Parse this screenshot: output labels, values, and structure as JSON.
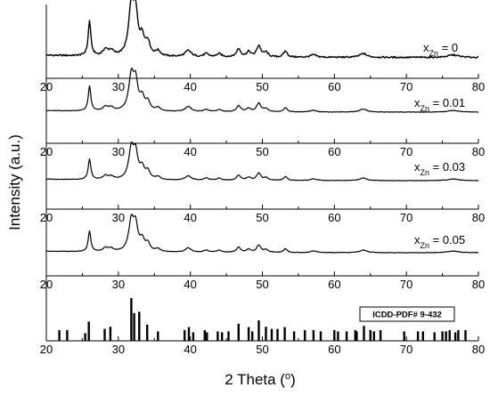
{
  "chart_data": {
    "type": "line",
    "xlabel": "2 Theta (",
    "xlabel_sup": "o",
    "xlabel_close": ")",
    "ylabel": "Intensity (a.u.)",
    "xlim": [
      20,
      80
    ],
    "xticks": [
      "20",
      "30",
      "40",
      "50",
      "60",
      "70",
      "80"
    ],
    "grid": false,
    "panels": [
      {
        "legend_main": "x",
        "legend_sub": "Zn",
        "legend_value": " = 0",
        "peaks": [
          {
            "x": 26.0,
            "h": 0.56,
            "w": 0.22
          },
          {
            "x": 28.2,
            "h": 0.1,
            "w": 0.4
          },
          {
            "x": 29.0,
            "h": 0.08,
            "w": 0.4
          },
          {
            "x": 31.8,
            "h": 0.8,
            "w": 0.42
          },
          {
            "x": 32.4,
            "h": 0.6,
            "w": 0.35
          },
          {
            "x": 33.3,
            "h": 0.28,
            "w": 0.4
          },
          {
            "x": 34.1,
            "h": 0.2,
            "w": 0.35
          },
          {
            "x": 35.5,
            "h": 0.08,
            "w": 0.4
          },
          {
            "x": 39.7,
            "h": 0.1,
            "w": 0.5
          },
          {
            "x": 42.2,
            "h": 0.05,
            "w": 0.4
          },
          {
            "x": 44.0,
            "h": 0.05,
            "w": 0.4
          },
          {
            "x": 46.7,
            "h": 0.13,
            "w": 0.35
          },
          {
            "x": 48.1,
            "h": 0.08,
            "w": 0.35
          },
          {
            "x": 49.5,
            "h": 0.18,
            "w": 0.35
          },
          {
            "x": 50.5,
            "h": 0.07,
            "w": 0.35
          },
          {
            "x": 53.2,
            "h": 0.1,
            "w": 0.3
          },
          {
            "x": 57.1,
            "h": 0.04,
            "w": 0.5
          },
          {
            "x": 64.0,
            "h": 0.06,
            "w": 0.6
          },
          {
            "x": 76.5,
            "h": 0.04,
            "w": 0.9
          }
        ]
      },
      {
        "legend_main": "x",
        "legend_sub": "Zn",
        "legend_value": " = 0.01",
        "peaks": [
          {
            "x": 26.0,
            "h": 0.58,
            "w": 0.22
          },
          {
            "x": 28.2,
            "h": 0.1,
            "w": 0.4
          },
          {
            "x": 29.0,
            "h": 0.08,
            "w": 0.4
          },
          {
            "x": 31.8,
            "h": 0.82,
            "w": 0.42
          },
          {
            "x": 32.4,
            "h": 0.62,
            "w": 0.35
          },
          {
            "x": 33.3,
            "h": 0.3,
            "w": 0.4
          },
          {
            "x": 34.1,
            "h": 0.2,
            "w": 0.35
          },
          {
            "x": 35.5,
            "h": 0.08,
            "w": 0.4
          },
          {
            "x": 39.7,
            "h": 0.12,
            "w": 0.5
          },
          {
            "x": 42.2,
            "h": 0.05,
            "w": 0.4
          },
          {
            "x": 44.0,
            "h": 0.05,
            "w": 0.4
          },
          {
            "x": 46.7,
            "h": 0.14,
            "w": 0.35
          },
          {
            "x": 48.1,
            "h": 0.08,
            "w": 0.35
          },
          {
            "x": 49.5,
            "h": 0.2,
            "w": 0.35
          },
          {
            "x": 50.5,
            "h": 0.07,
            "w": 0.35
          },
          {
            "x": 53.2,
            "h": 0.1,
            "w": 0.3
          },
          {
            "x": 57.1,
            "h": 0.04,
            "w": 0.5
          },
          {
            "x": 64.0,
            "h": 0.07,
            "w": 0.6
          },
          {
            "x": 76.5,
            "h": 0.04,
            "w": 0.9
          }
        ]
      },
      {
        "legend_main": "x",
        "legend_sub": "Zn",
        "legend_value": " = 0.03",
        "peaks": [
          {
            "x": 26.0,
            "h": 0.48,
            "w": 0.22
          },
          {
            "x": 28.2,
            "h": 0.09,
            "w": 0.4
          },
          {
            "x": 29.0,
            "h": 0.07,
            "w": 0.4
          },
          {
            "x": 31.8,
            "h": 0.72,
            "w": 0.42
          },
          {
            "x": 32.4,
            "h": 0.55,
            "w": 0.35
          },
          {
            "x": 33.3,
            "h": 0.26,
            "w": 0.4
          },
          {
            "x": 34.1,
            "h": 0.18,
            "w": 0.35
          },
          {
            "x": 35.5,
            "h": 0.07,
            "w": 0.4
          },
          {
            "x": 39.7,
            "h": 0.1,
            "w": 0.5
          },
          {
            "x": 42.2,
            "h": 0.05,
            "w": 0.4
          },
          {
            "x": 44.0,
            "h": 0.05,
            "w": 0.4
          },
          {
            "x": 46.7,
            "h": 0.12,
            "w": 0.35
          },
          {
            "x": 48.1,
            "h": 0.07,
            "w": 0.35
          },
          {
            "x": 49.5,
            "h": 0.17,
            "w": 0.35
          },
          {
            "x": 50.5,
            "h": 0.06,
            "w": 0.35
          },
          {
            "x": 53.2,
            "h": 0.09,
            "w": 0.3
          },
          {
            "x": 57.1,
            "h": 0.04,
            "w": 0.5
          },
          {
            "x": 64.0,
            "h": 0.06,
            "w": 0.6
          },
          {
            "x": 76.5,
            "h": 0.04,
            "w": 0.9
          }
        ]
      },
      {
        "legend_main": "x",
        "legend_sub": "Zn",
        "legend_value": " = 0.05",
        "peaks": [
          {
            "x": 26.0,
            "h": 0.48,
            "w": 0.22
          },
          {
            "x": 28.2,
            "h": 0.09,
            "w": 0.4
          },
          {
            "x": 29.0,
            "h": 0.07,
            "w": 0.4
          },
          {
            "x": 31.8,
            "h": 0.72,
            "w": 0.42
          },
          {
            "x": 32.4,
            "h": 0.55,
            "w": 0.35
          },
          {
            "x": 33.3,
            "h": 0.26,
            "w": 0.4
          },
          {
            "x": 34.1,
            "h": 0.18,
            "w": 0.35
          },
          {
            "x": 35.5,
            "h": 0.07,
            "w": 0.4
          },
          {
            "x": 39.7,
            "h": 0.1,
            "w": 0.5
          },
          {
            "x": 42.2,
            "h": 0.05,
            "w": 0.4
          },
          {
            "x": 44.0,
            "h": 0.05,
            "w": 0.4
          },
          {
            "x": 46.7,
            "h": 0.12,
            "w": 0.35
          },
          {
            "x": 48.1,
            "h": 0.07,
            "w": 0.35
          },
          {
            "x": 49.5,
            "h": 0.17,
            "w": 0.35
          },
          {
            "x": 50.5,
            "h": 0.06,
            "w": 0.35
          },
          {
            "x": 53.2,
            "h": 0.09,
            "w": 0.3
          },
          {
            "x": 57.1,
            "h": 0.04,
            "w": 0.5
          },
          {
            "x": 64.0,
            "h": 0.06,
            "w": 0.6
          },
          {
            "x": 76.5,
            "h": 0.04,
            "w": 0.9
          }
        ]
      }
    ],
    "reference": {
      "label": "ICDD-PDF# 9-432",
      "lines": [
        [
          21.8,
          0.25
        ],
        [
          22.9,
          0.25
        ],
        [
          25.4,
          0.18
        ],
        [
          25.9,
          0.45
        ],
        [
          28.1,
          0.28
        ],
        [
          28.9,
          0.33
        ],
        [
          31.8,
          1.0
        ],
        [
          32.2,
          0.65
        ],
        [
          32.9,
          0.68
        ],
        [
          34.0,
          0.38
        ],
        [
          35.5,
          0.22
        ],
        [
          39.2,
          0.25
        ],
        [
          39.8,
          0.32
        ],
        [
          40.4,
          0.2
        ],
        [
          42.0,
          0.25
        ],
        [
          42.3,
          0.2
        ],
        [
          43.8,
          0.22
        ],
        [
          44.4,
          0.2
        ],
        [
          45.3,
          0.22
        ],
        [
          46.7,
          0.4
        ],
        [
          48.1,
          0.32
        ],
        [
          48.6,
          0.22
        ],
        [
          49.5,
          0.48
        ],
        [
          50.5,
          0.33
        ],
        [
          51.3,
          0.28
        ],
        [
          52.1,
          0.28
        ],
        [
          53.1,
          0.32
        ],
        [
          54.4,
          0.22
        ],
        [
          55.9,
          0.25
        ],
        [
          57.1,
          0.25
        ],
        [
          58.1,
          0.22
        ],
        [
          60.0,
          0.25
        ],
        [
          60.5,
          0.22
        ],
        [
          61.7,
          0.22
        ],
        [
          62.9,
          0.25
        ],
        [
          63.1,
          0.22
        ],
        [
          64.1,
          0.35
        ],
        [
          65.0,
          0.25
        ],
        [
          65.5,
          0.22
        ],
        [
          66.4,
          0.25
        ],
        [
          69.7,
          0.22
        ],
        [
          71.6,
          0.22
        ],
        [
          72.3,
          0.22
        ],
        [
          73.9,
          0.2
        ],
        [
          75.0,
          0.22
        ],
        [
          75.5,
          0.22
        ],
        [
          76.0,
          0.25
        ],
        [
          76.8,
          0.2
        ],
        [
          77.2,
          0.25
        ],
        [
          78.2,
          0.25
        ]
      ]
    }
  }
}
